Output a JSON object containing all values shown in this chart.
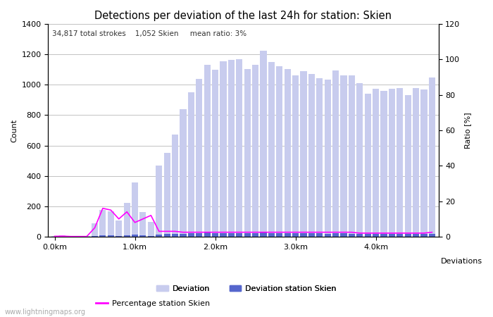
{
  "title": "Detections per deviation of the last 24h for station: Skien",
  "subtitle": "34,817 total strokes    1,052 Skien     mean ratio: 3%",
  "xlabel_right": "Deviations",
  "ylabel_left": "Count",
  "ylabel_right": "Ratio [%]",
  "watermark": "www.lightningmaps.org",
  "ylim_left": [
    0,
    1400
  ],
  "ylim_right": [
    0,
    120
  ],
  "xtick_labels": [
    "0.0km",
    "1.0km",
    "2.0km",
    "3.0km",
    "4.0km"
  ],
  "xtick_positions": [
    0,
    10,
    20,
    30,
    40
  ],
  "deviation_bars": [
    5,
    8,
    4,
    4,
    4,
    90,
    175,
    165,
    105,
    220,
    355,
    162,
    98,
    470,
    550,
    672,
    840,
    948,
    1040,
    1130,
    1100,
    1155,
    1162,
    1168,
    1105,
    1132,
    1222,
    1148,
    1120,
    1102,
    1062,
    1090,
    1072,
    1042,
    1032,
    1092,
    1062,
    1062,
    1012,
    942,
    972,
    960,
    972,
    978,
    932,
    980,
    970,
    1048
  ],
  "station_bars": [
    1,
    1,
    1,
    1,
    1,
    5,
    8,
    8,
    6,
    10,
    12,
    8,
    6,
    14,
    16,
    18,
    20,
    22,
    25,
    26,
    24,
    25,
    25,
    25,
    24,
    24,
    26,
    24,
    24,
    24,
    22,
    23,
    22,
    21,
    20,
    22,
    21,
    20,
    19,
    17,
    18,
    17,
    18,
    18,
    17,
    18,
    17,
    19
  ],
  "percentage_line": [
    0.2,
    0.3,
    0.1,
    0.1,
    0.1,
    5,
    16,
    15,
    10,
    14,
    8,
    10,
    12,
    3,
    3,
    3,
    2.5,
    2.5,
    2.5,
    2.5,
    2.5,
    2.5,
    2.5,
    2.5,
    2.5,
    2.5,
    2.5,
    2.5,
    2.5,
    2.5,
    2.5,
    2.5,
    2.5,
    2.5,
    2.5,
    2.5,
    2.5,
    2.5,
    2,
    2,
    2,
    2,
    2,
    2,
    2,
    2,
    2,
    2.5
  ],
  "bar_color_light": "#c8ccee",
  "bar_color_dark": "#5566cc",
  "line_color": "#ff00ff",
  "background_color": "#ffffff",
  "grid_color": "#aaaaaa",
  "legend_items": [
    "Deviation",
    "Deviation station Skien",
    "Percentage station Skien"
  ],
  "title_fontsize": 10.5,
  "subtitle_fontsize": 7.5,
  "axis_fontsize": 8,
  "watermark_fontsize": 7
}
